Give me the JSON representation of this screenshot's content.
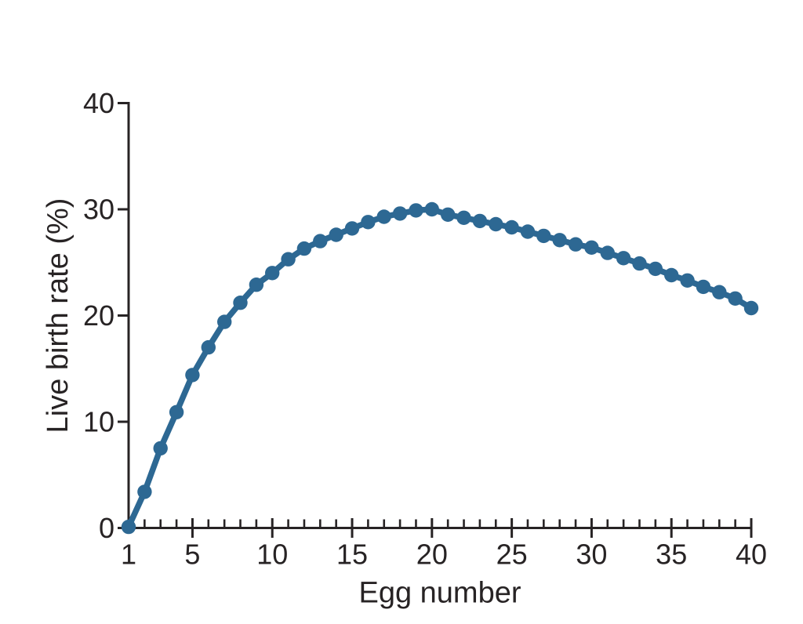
{
  "figure": {
    "background": "#ffffff"
  },
  "chart_data": {
    "type": "line",
    "title": "",
    "xlabel": "Egg number",
    "ylabel": "Live birth rate (%)",
    "x": [
      1,
      2,
      3,
      4,
      5,
      6,
      7,
      8,
      9,
      10,
      11,
      12,
      13,
      14,
      15,
      16,
      17,
      18,
      19,
      20,
      21,
      22,
      23,
      24,
      25,
      26,
      27,
      28,
      29,
      30,
      31,
      32,
      33,
      34,
      35,
      36,
      37,
      38,
      39,
      40
    ],
    "values": [
      0.1,
      3.4,
      7.5,
      10.9,
      14.4,
      17.0,
      19.4,
      21.2,
      22.9,
      24.0,
      25.3,
      26.3,
      27.0,
      27.6,
      28.2,
      28.8,
      29.3,
      29.6,
      29.9,
      30.0,
      29.5,
      29.2,
      28.9,
      28.6,
      28.3,
      27.9,
      27.5,
      27.1,
      26.7,
      26.4,
      25.9,
      25.4,
      24.9,
      24.4,
      23.8,
      23.3,
      22.7,
      22.2,
      21.6,
      20.7
    ],
    "xlim": [
      1,
      40
    ],
    "ylim": [
      0,
      40
    ],
    "x_tick_labels": [
      "1",
      "5",
      "10",
      "15",
      "20",
      "25",
      "30",
      "35",
      "40"
    ],
    "x_tick_label_values": [
      1,
      5,
      10,
      15,
      20,
      25,
      30,
      35,
      40
    ],
    "x_major_tick_values": [
      5,
      10,
      15,
      20,
      25,
      30,
      35,
      40
    ],
    "x_minor_tick_step": 1,
    "y_tick_labels": [
      "0",
      "10",
      "20",
      "30",
      "40"
    ],
    "y_tick_values": [
      0,
      10,
      20,
      30,
      40
    ],
    "grid": false,
    "legend": null,
    "marker": "circle",
    "line_color": "#2d6893",
    "axis_color": "#272324",
    "text_color": "#272324"
  }
}
